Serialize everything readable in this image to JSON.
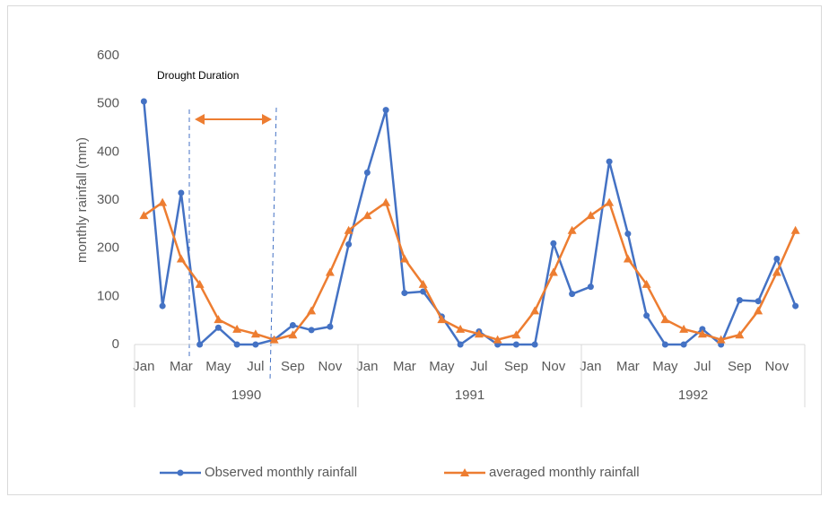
{
  "chart_data": {
    "type": "line",
    "annotation": "Drought Duration",
    "y_label": "monthly rainfall (mm)",
    "categories": [
      "Jan",
      null,
      "Mar",
      null,
      "May",
      null,
      "Jul",
      null,
      "Sep",
      null,
      "Nov",
      null,
      "Jan",
      null,
      "Mar",
      null,
      "May",
      null,
      "Jul",
      null,
      "Sep",
      null,
      "Nov",
      null,
      "Jan",
      null,
      "Mar",
      null,
      "May",
      null,
      "Jul",
      null,
      "Sep",
      null,
      "Nov",
      null
    ],
    "category_groups": [
      "1990",
      "1991",
      "1992"
    ],
    "series": [
      {
        "name": "Observed monthly rainfall",
        "color": "#4472c4",
        "marker": "circle",
        "values": [
          505,
          80,
          315,
          0,
          35,
          0,
          0,
          10,
          40,
          30,
          37,
          208,
          357,
          487,
          107,
          110,
          58,
          0,
          27,
          0,
          0,
          0,
          210,
          105,
          120,
          380,
          230,
          60,
          0,
          0,
          32,
          0,
          92,
          90,
          178,
          80
        ]
      },
      {
        "name": "averaged monthly rainfall",
        "color": "#ed7d31",
        "marker": "triangle",
        "values": [
          268,
          295,
          178,
          125,
          52,
          32,
          22,
          10,
          20,
          70,
          150,
          237,
          268,
          295,
          178,
          125,
          52,
          32,
          22,
          10,
          20,
          70,
          150,
          237,
          268,
          295,
          178,
          125,
          52,
          32,
          22,
          10,
          20,
          70,
          150,
          237
        ]
      }
    ],
    "ylim": [
      0,
      600
    ],
    "yticks": [
      0,
      100,
      200,
      300,
      400,
      500,
      600
    ],
    "grid": false,
    "legend": "bottom"
  }
}
